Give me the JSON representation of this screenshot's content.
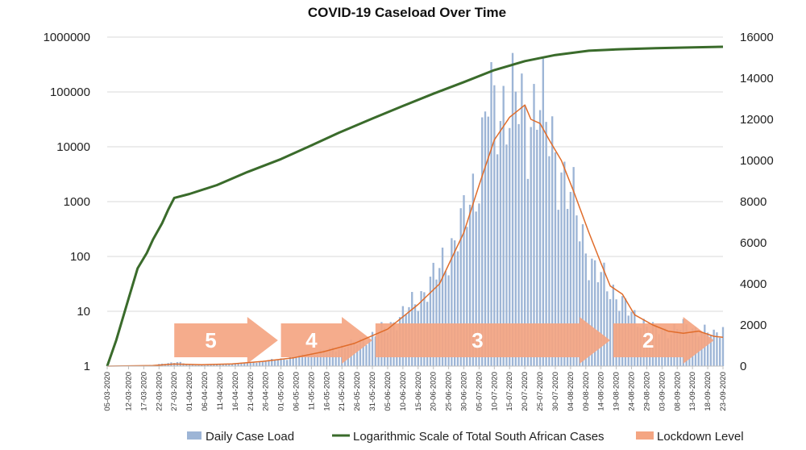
{
  "chart_data": {
    "type": "bar",
    "title": "COVID-19 Caseload Over Time",
    "xlabel": "",
    "y_left": {
      "scale": "log",
      "range": [
        1,
        1000000
      ],
      "ticks": [
        "1",
        "10",
        "100",
        "1000",
        "10000",
        "100000",
        "1000000"
      ]
    },
    "y_right": {
      "scale": "linear",
      "range": [
        0,
        16000
      ],
      "ticks": [
        "0",
        "2000",
        "4000",
        "6000",
        "8000",
        "10000",
        "12000",
        "14000",
        "16000"
      ]
    },
    "grid": true,
    "x_date_range": [
      "05-03-2020",
      "23-09-2020"
    ],
    "x_tick_labels": [
      "05-03-2020",
      "12-03-2020",
      "17-03-2020",
      "22-03-2020",
      "27-03-2020",
      "01-04-2020",
      "06-04-2020",
      "11-04-2020",
      "16-04-2020",
      "21-04-2020",
      "26-04-2020",
      "01-05-2020",
      "06-05-2020",
      "11-05-2020",
      "16-05-2020",
      "21-05-2020",
      "26-05-2020",
      "31-05-2020",
      "05-06-2020",
      "10-06-2020",
      "15-06-2020",
      "20-06-2020",
      "25-06-2020",
      "30-06-2020",
      "05-07-2020",
      "10-07-2020",
      "15-07-2020",
      "20-07-2020",
      "25-07-2020",
      "30-07-2020",
      "04-08-2020",
      "09-08-2020",
      "14-08-2020",
      "19-08-2020",
      "24-08-2020",
      "29-08-2020",
      "03-09-2020",
      "08-09-2020",
      "13-09-2020",
      "18-09-2020",
      "23-09-2020"
    ],
    "legend_position": "bottom",
    "series": [
      {
        "name": "Daily Case Load",
        "type": "bar",
        "axis": "right",
        "color": "#9db5d6",
        "points": [
          [
            "05-03-2020",
            0
          ],
          [
            "10-03-2020",
            5
          ],
          [
            "15-03-2020",
            15
          ],
          [
            "20-03-2020",
            55
          ],
          [
            "25-03-2020",
            140
          ],
          [
            "28-03-2020",
            220
          ],
          [
            "01-04-2020",
            60
          ],
          [
            "05-04-2020",
            50
          ],
          [
            "10-04-2020",
            80
          ],
          [
            "15-04-2020",
            110
          ],
          [
            "20-04-2020",
            160
          ],
          [
            "25-04-2020",
            240
          ],
          [
            "30-04-2020",
            320
          ],
          [
            "05-05-2020",
            420
          ],
          [
            "10-05-2020",
            560
          ],
          [
            "15-05-2020",
            720
          ],
          [
            "20-05-2020",
            920
          ],
          [
            "25-05-2020",
            1100
          ],
          [
            "30-05-2020",
            1400
          ],
          [
            "05-06-2020",
            1900
          ],
          [
            "10-06-2020",
            2500
          ],
          [
            "15-06-2020",
            3300
          ],
          [
            "20-06-2020",
            4200
          ],
          [
            "25-06-2020",
            5500
          ],
          [
            "30-06-2020",
            7000
          ],
          [
            "05-07-2020",
            9500
          ],
          [
            "08-07-2020",
            13200
          ],
          [
            "10-07-2020",
            12000
          ],
          [
            "14-07-2020",
            13000
          ],
          [
            "18-07-2020",
            12600
          ],
          [
            "21-07-2020",
            11600
          ],
          [
            "24-07-2020",
            13400
          ],
          [
            "27-07-2020",
            11500
          ],
          [
            "30-07-2020",
            10500
          ],
          [
            "03-08-2020",
            8500
          ],
          [
            "06-08-2020",
            7500
          ],
          [
            "09-08-2020",
            5800
          ],
          [
            "12-08-2020",
            4500
          ],
          [
            "15-08-2020",
            4200
          ],
          [
            "18-08-2020",
            3700
          ],
          [
            "21-08-2020",
            3000
          ],
          [
            "24-08-2020",
            2500
          ],
          [
            "27-08-2020",
            2200
          ],
          [
            "31-08-2020",
            1800
          ],
          [
            "05-09-2020",
            1700
          ],
          [
            "10-09-2020",
            1900
          ],
          [
            "15-09-2020",
            1800
          ],
          [
            "20-09-2020",
            1500
          ],
          [
            "23-09-2020",
            1900
          ]
        ]
      },
      {
        "name": "",
        "type": "line",
        "axis": "right",
        "color": "#e06c2a",
        "points": [
          [
            "05-03-2020",
            0
          ],
          [
            "20-03-2020",
            30
          ],
          [
            "27-03-2020",
            100
          ],
          [
            "05-04-2020",
            70
          ],
          [
            "15-04-2020",
            110
          ],
          [
            "25-04-2020",
            230
          ],
          [
            "05-05-2020",
            400
          ],
          [
            "15-05-2020",
            700
          ],
          [
            "25-05-2020",
            1100
          ],
          [
            "05-06-2020",
            1800
          ],
          [
            "15-06-2020",
            3000
          ],
          [
            "22-06-2020",
            4000
          ],
          [
            "30-06-2020",
            6500
          ],
          [
            "05-07-2020",
            8800
          ],
          [
            "10-07-2020",
            11000
          ],
          [
            "15-07-2020",
            12100
          ],
          [
            "20-07-2020",
            12700
          ],
          [
            "22-07-2020",
            12000
          ],
          [
            "25-07-2020",
            11800
          ],
          [
            "28-07-2020",
            11000
          ],
          [
            "01-08-2020",
            10000
          ],
          [
            "05-08-2020",
            8500
          ],
          [
            "10-08-2020",
            6500
          ],
          [
            "14-08-2020",
            5000
          ],
          [
            "17-08-2020",
            3900
          ],
          [
            "21-08-2020",
            3500
          ],
          [
            "25-08-2020",
            2500
          ],
          [
            "31-08-2020",
            2000
          ],
          [
            "05-09-2020",
            1700
          ],
          [
            "10-09-2020",
            1600
          ],
          [
            "15-09-2020",
            1700
          ],
          [
            "20-09-2020",
            1450
          ],
          [
            "23-09-2020",
            1400
          ]
        ]
      },
      {
        "name": "Logarithmic Scale of Total South African Cases",
        "type": "line",
        "axis": "left",
        "color": "#3a6b2b",
        "points": [
          [
            "05-03-2020",
            1
          ],
          [
            "08-03-2020",
            3
          ],
          [
            "12-03-2020",
            17
          ],
          [
            "15-03-2020",
            61
          ],
          [
            "18-03-2020",
            116
          ],
          [
            "20-03-2020",
            202
          ],
          [
            "23-03-2020",
            402
          ],
          [
            "25-03-2020",
            709
          ],
          [
            "27-03-2020",
            1170
          ],
          [
            "01-04-2020",
            1380
          ],
          [
            "10-04-2020",
            2003
          ],
          [
            "20-04-2020",
            3465
          ],
          [
            "01-05-2020",
            5951
          ],
          [
            "10-05-2020",
            10015
          ],
          [
            "20-05-2020",
            18003
          ],
          [
            "31-05-2020",
            32683
          ],
          [
            "10-06-2020",
            55421
          ],
          [
            "20-06-2020",
            92681
          ],
          [
            "30-06-2020",
            151209
          ],
          [
            "10-07-2020",
            250687
          ],
          [
            "20-07-2020",
            364328
          ],
          [
            "30-07-2020",
            471123
          ],
          [
            "10-08-2020",
            563598
          ],
          [
            "20-08-2020",
            599940
          ],
          [
            "01-09-2020",
            628259
          ],
          [
            "10-09-2020",
            644438
          ],
          [
            "23-09-2020",
            665188
          ]
        ]
      }
    ],
    "legend": [
      "Daily Case Load",
      "Logarithmic Scale of Total South African Cases",
      "Lockdown Level"
    ],
    "lockdown_levels": [
      {
        "label": "5",
        "start": "27-03-2020",
        "end": "30-04-2020"
      },
      {
        "label": "4",
        "start": "01-05-2020",
        "end": "31-05-2020"
      },
      {
        "label": "3",
        "start": "01-06-2020",
        "end": "17-08-2020"
      },
      {
        "label": "2",
        "start": "18-08-2020",
        "end": "20-09-2020"
      }
    ],
    "colors": {
      "lockdown": "#f4a582",
      "grid": "#d9d9d9",
      "axis": "#bfbfbf"
    }
  }
}
